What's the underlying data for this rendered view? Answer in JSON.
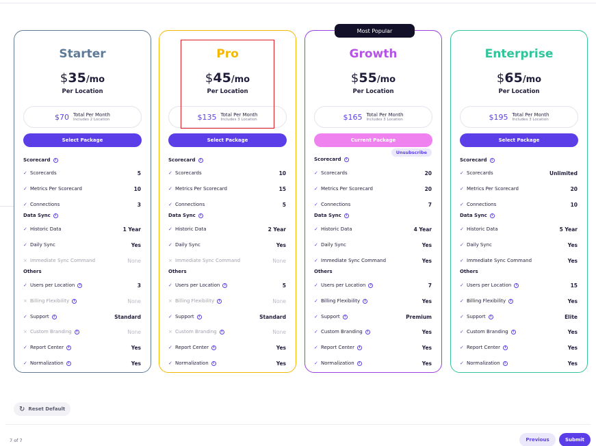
{
  "plans": [
    {
      "name": "Starter",
      "name_color": "#5f7a96",
      "border_color": "#5f7a96",
      "currency": "$",
      "price": "35",
      "per": "/mo",
      "per_location": "Per Location",
      "total_amount": "$70",
      "total_label": "Total Per Month",
      "total_sub": "Includes 2 Location",
      "button": "Select Package",
      "button_state": "select",
      "badge": "",
      "unsubscribe": "",
      "sections": {
        "scorecard": "Scorecard",
        "data_sync": "Data Sync",
        "others": "Others"
      },
      "features": [
        {
          "label": "Scorecards",
          "value": "5",
          "enabled": true,
          "info": false
        },
        {
          "label": "Metrics Per Scorecard",
          "value": "10",
          "enabled": true,
          "info": false
        },
        {
          "label": "Connections",
          "value": "3",
          "enabled": true,
          "info": false
        },
        {
          "label": "Historic Data",
          "value": "1 Year",
          "enabled": true,
          "info": false
        },
        {
          "label": "Daily Sync",
          "value": "Yes",
          "enabled": true,
          "info": false
        },
        {
          "label": "Immediate Sync Command",
          "value": "None",
          "enabled": false,
          "info": false
        },
        {
          "label": "Users per Location",
          "value": "3",
          "enabled": true,
          "info": true
        },
        {
          "label": "Billing Flexibility",
          "value": "None",
          "enabled": false,
          "info": true
        },
        {
          "label": "Support",
          "value": "Standard",
          "enabled": true,
          "info": true
        },
        {
          "label": "Custom Branding",
          "value": "None",
          "enabled": false,
          "info": true
        },
        {
          "label": "Report Center",
          "value": "Yes",
          "enabled": true,
          "info": true
        },
        {
          "label": "Normalization",
          "value": "Yes",
          "enabled": true,
          "info": true
        }
      ]
    },
    {
      "name": "Pro",
      "name_color": "#f5b800",
      "border_color": "#f5b800",
      "currency": "$",
      "price": "45",
      "per": "/mo",
      "per_location": "Per Location",
      "total_amount": "$135",
      "total_label": "Total Per Month",
      "total_sub": "Includes 3 Location",
      "button": "Select Package",
      "button_state": "select",
      "badge": "",
      "unsubscribe": "",
      "sections": {
        "scorecard": "Scorecard",
        "data_sync": "Data Sync",
        "others": "Others"
      },
      "features": [
        {
          "label": "Scorecards",
          "value": "10",
          "enabled": true,
          "info": false
        },
        {
          "label": "Metrics Per Scorecard",
          "value": "15",
          "enabled": true,
          "info": false
        },
        {
          "label": "Connections",
          "value": "5",
          "enabled": true,
          "info": false
        },
        {
          "label": "Historic Data",
          "value": "2 Year",
          "enabled": true,
          "info": false
        },
        {
          "label": "Daily Sync",
          "value": "Yes",
          "enabled": true,
          "info": false
        },
        {
          "label": "Immediate Sync Command",
          "value": "None",
          "enabled": false,
          "info": false
        },
        {
          "label": "Users per Location",
          "value": "5",
          "enabled": true,
          "info": true
        },
        {
          "label": "Billing Flexibility",
          "value": "None",
          "enabled": false,
          "info": true
        },
        {
          "label": "Support",
          "value": "Standard",
          "enabled": true,
          "info": true
        },
        {
          "label": "Custom Branding",
          "value": "None",
          "enabled": false,
          "info": true
        },
        {
          "label": "Report Center",
          "value": "Yes",
          "enabled": true,
          "info": true
        },
        {
          "label": "Normalization",
          "value": "Yes",
          "enabled": true,
          "info": true
        }
      ]
    },
    {
      "name": "Growth",
      "name_color": "#b453e6",
      "border_color": "#9a3fe0",
      "currency": "$",
      "price": "55",
      "per": "/mo",
      "per_location": "Per Location",
      "total_amount": "$165",
      "total_label": "Total Per Month",
      "total_sub": "Includes 3 Location",
      "button": "Current Package",
      "button_state": "current",
      "badge": "Most Popular",
      "unsubscribe": "Unsubscribe",
      "sections": {
        "scorecard": "Scorecard",
        "data_sync": "Data Sync",
        "others": "Others"
      },
      "features": [
        {
          "label": "Scorecards",
          "value": "20",
          "enabled": true,
          "info": false
        },
        {
          "label": "Metrics Per Scorecard",
          "value": "20",
          "enabled": true,
          "info": false
        },
        {
          "label": "Connections",
          "value": "7",
          "enabled": true,
          "info": false
        },
        {
          "label": "Historic Data",
          "value": "4 Year",
          "enabled": true,
          "info": false
        },
        {
          "label": "Daily Sync",
          "value": "Yes",
          "enabled": true,
          "info": false
        },
        {
          "label": "Immediate Sync Command",
          "value": "Yes",
          "enabled": true,
          "info": false
        },
        {
          "label": "Users per Location",
          "value": "7",
          "enabled": true,
          "info": true
        },
        {
          "label": "Billing Flexibility",
          "value": "Yes",
          "enabled": true,
          "info": true
        },
        {
          "label": "Support",
          "value": "Premium",
          "enabled": true,
          "info": true
        },
        {
          "label": "Custom Branding",
          "value": "Yes",
          "enabled": true,
          "info": true
        },
        {
          "label": "Report Center",
          "value": "Yes",
          "enabled": true,
          "info": true
        },
        {
          "label": "Normalization",
          "value": "Yes",
          "enabled": true,
          "info": true
        }
      ]
    },
    {
      "name": "Enterprise",
      "name_color": "#2fc49a",
      "border_color": "#2fc49a",
      "currency": "$",
      "price": "65",
      "per": "/mo",
      "per_location": "Per Location",
      "total_amount": "$195",
      "total_label": "Total Per Month",
      "total_sub": "Includes 3 Location",
      "button": "Select Package",
      "button_state": "select",
      "badge": "",
      "unsubscribe": "",
      "sections": {
        "scorecard": "Scorecard",
        "data_sync": "Data Sync",
        "others": "Others"
      },
      "features": [
        {
          "label": "Scorecards",
          "value": "Unlimited",
          "enabled": true,
          "info": false
        },
        {
          "label": "Metrics Per Scorecard",
          "value": "20",
          "enabled": true,
          "info": false
        },
        {
          "label": "Connections",
          "value": "10",
          "enabled": true,
          "info": false
        },
        {
          "label": "Historic Data",
          "value": "5 Year",
          "enabled": true,
          "info": false
        },
        {
          "label": "Daily Sync",
          "value": "Yes",
          "enabled": true,
          "info": false
        },
        {
          "label": "Immediate Sync Command",
          "value": "Yes",
          "enabled": true,
          "info": false
        },
        {
          "label": "Users per Location",
          "value": "15",
          "enabled": true,
          "info": true
        },
        {
          "label": "Billing Flexibility",
          "value": "Yes",
          "enabled": true,
          "info": true
        },
        {
          "label": "Support",
          "value": "Elite",
          "enabled": true,
          "info": true
        },
        {
          "label": "Custom Branding",
          "value": "Yes",
          "enabled": true,
          "info": true
        },
        {
          "label": "Report Center",
          "value": "Yes",
          "enabled": true,
          "info": true
        },
        {
          "label": "Normalization",
          "value": "Yes",
          "enabled": true,
          "info": true
        }
      ]
    }
  ],
  "footer": {
    "reset_label": "Reset Default",
    "step_text": "7 of 7",
    "previous_label": "Previous",
    "submit_label": "Submit"
  },
  "colors": {
    "accent": "#5b3ee8",
    "current_button": "#f082f0",
    "highlight": "#e01b24"
  }
}
